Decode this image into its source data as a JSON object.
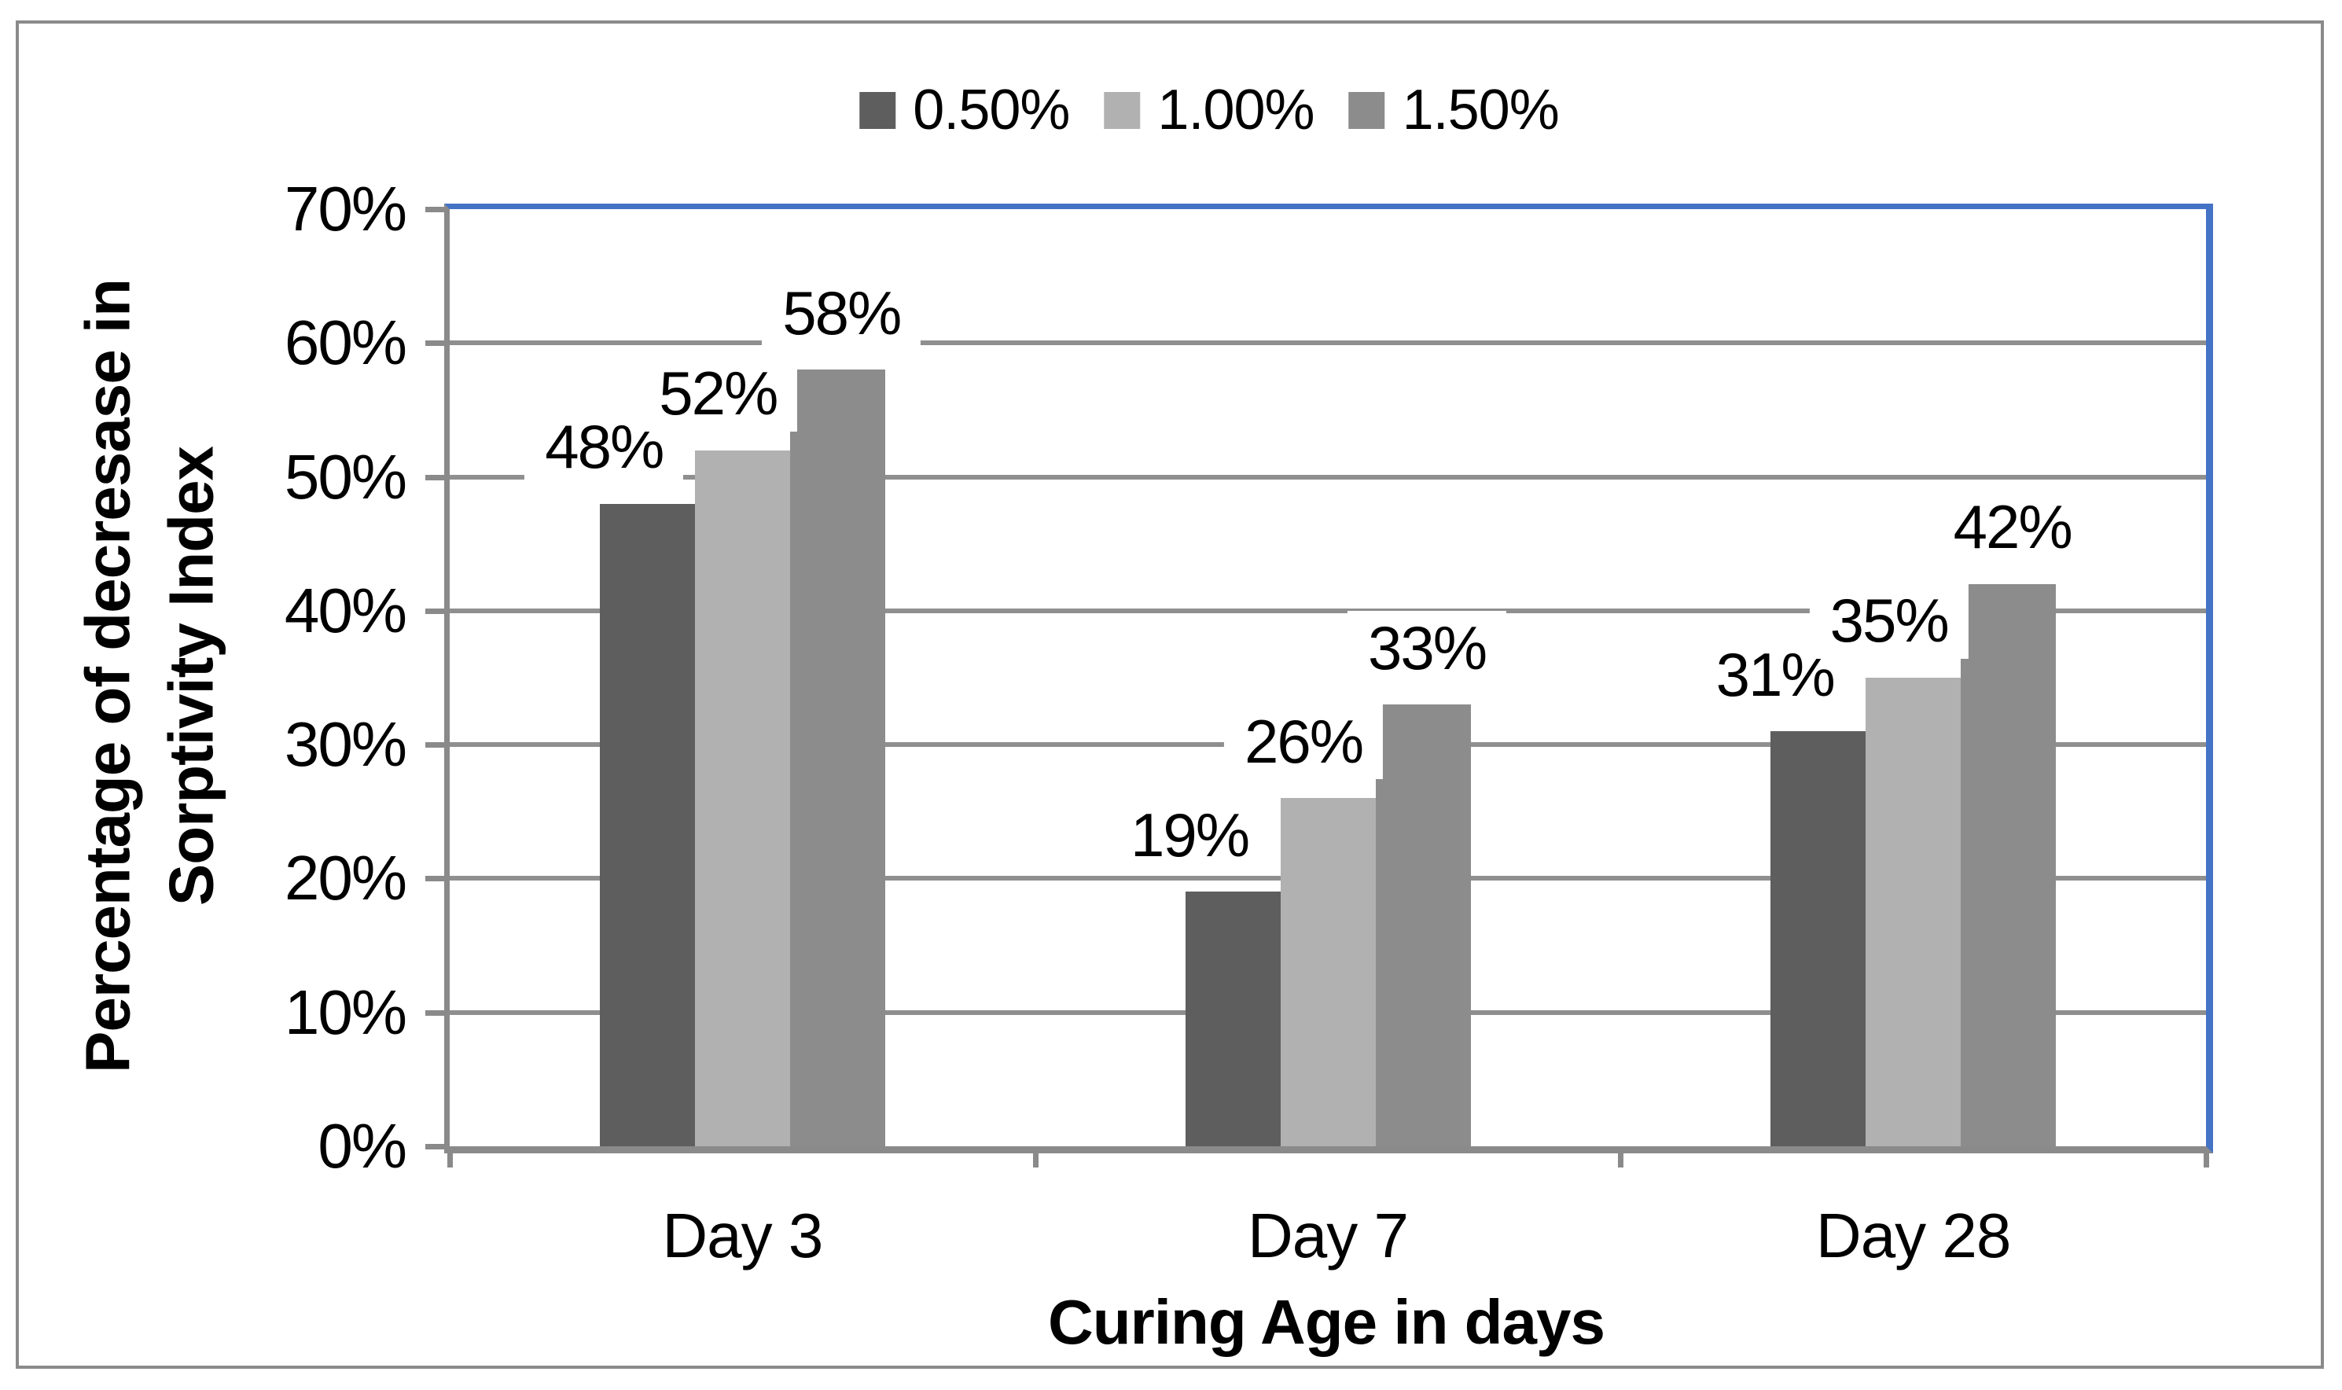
{
  "figure": {
    "background": "#FFFFFF",
    "border_color": "#8A8A8A"
  },
  "chart_data": {
    "type": "bar",
    "title": "",
    "categories": [
      "Day 3",
      "Day 7",
      "Day 28"
    ],
    "series": [
      {
        "name": "0.50%",
        "color": "#5E5E5E",
        "values": [
          48,
          19,
          31
        ],
        "labels": [
          "48%",
          "19%",
          "31%"
        ]
      },
      {
        "name": "1.00%",
        "color": "#B1B1B1",
        "values": [
          52,
          26,
          35
        ],
        "labels": [
          "52%",
          "26%",
          "35%"
        ]
      },
      {
        "name": "1.50%",
        "color": "#8C8C8C",
        "values": [
          58,
          33,
          42
        ],
        "labels": [
          "58%",
          "33%",
          "42%"
        ]
      }
    ],
    "xlabel": "Curing Age in days",
    "ylabel_lines": [
      "Percentage of decresase in",
      "Sorptivity Index"
    ],
    "yticks": [
      "0%",
      "10%",
      "20%",
      "30%",
      "40%",
      "50%",
      "60%",
      "70%"
    ],
    "ytick_values": [
      0,
      10,
      20,
      30,
      40,
      50,
      60,
      70
    ],
    "ylim": [
      0,
      70
    ],
    "grid": "horizontal",
    "legend_position": "top-center",
    "colors": {
      "gridline": "#8F8F8F",
      "axis_line": "#8A8A8A",
      "plot_border_accent": "#4472C4",
      "label_text": "#000000"
    }
  }
}
